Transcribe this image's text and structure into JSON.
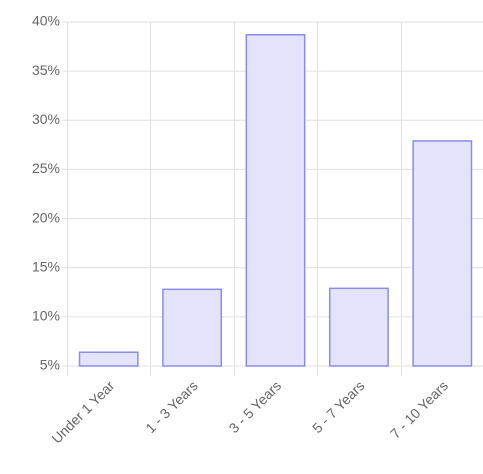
{
  "chart_data": {
    "type": "bar",
    "categories": [
      "Under 1 Year",
      "1 - 3 Years",
      "3 - 5 Years",
      "5 - 7 Years",
      "7 - 10 Years"
    ],
    "values": [
      6.4,
      12.8,
      38.7,
      12.9,
      27.9
    ],
    "color": "#e3e3fc",
    "border_color": "#8c8ce8",
    "ylim": [
      5,
      40
    ],
    "yticks": [
      {
        "value": 5,
        "label": "5%"
      },
      {
        "value": 10,
        "label": "10%"
      },
      {
        "value": 15,
        "label": "15%"
      },
      {
        "value": 20,
        "label": "20%"
      },
      {
        "value": 25,
        "label": "25%"
      },
      {
        "value": 30,
        "label": "30%"
      },
      {
        "value": 35,
        "label": "35%"
      },
      {
        "value": 40,
        "label": "40%"
      }
    ],
    "grid": true
  }
}
